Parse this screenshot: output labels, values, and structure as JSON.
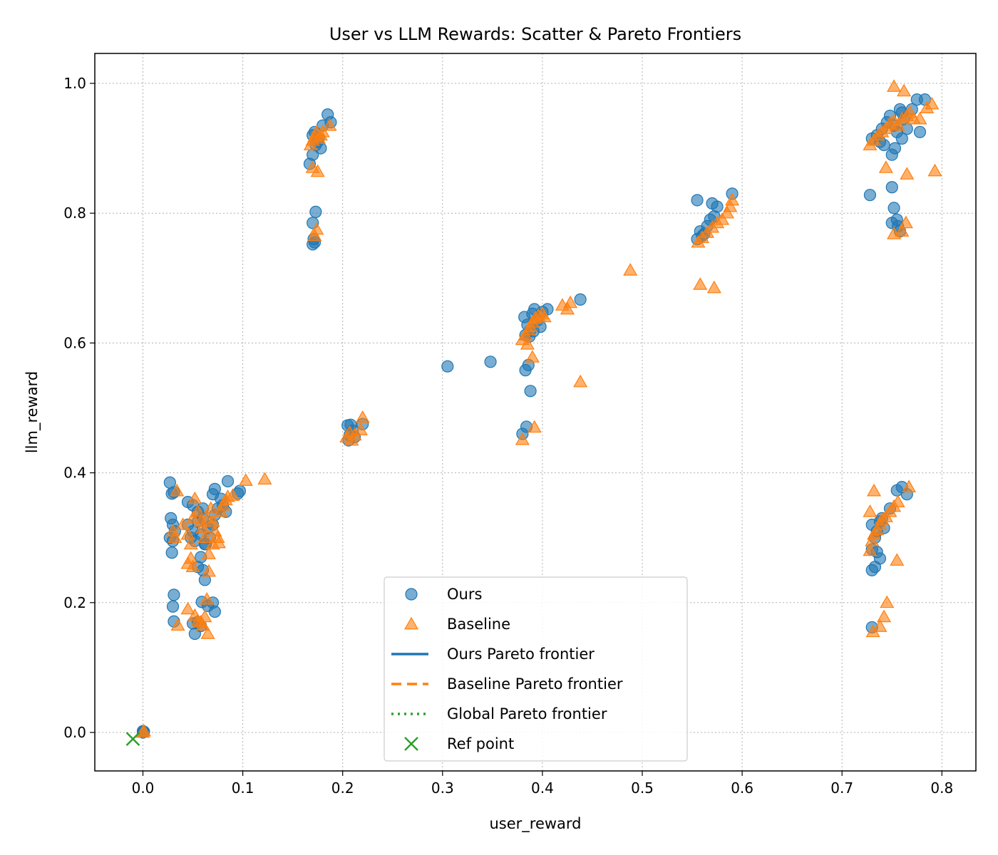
{
  "chart_data": {
    "type": "scatter",
    "title": "User vs LLM Rewards: Scatter & Pareto Frontiers",
    "xlabel": "user_reward",
    "ylabel": "llm_reward",
    "xlim": [
      -0.05,
      0.83
    ],
    "ylim": [
      -0.06,
      1.05
    ],
    "xticks": [
      "0.0",
      "0.1",
      "0.2",
      "0.3",
      "0.4",
      "0.5",
      "0.6",
      "0.7",
      "0.8"
    ],
    "yticks": [
      "0.0",
      "0.2",
      "0.4",
      "0.6",
      "0.8",
      "1.0"
    ],
    "grid": true,
    "legend_position": "bottom-center",
    "colors": {
      "ours": "#1f77b4",
      "baseline": "#ff7f0e",
      "global": "#2ca02c"
    },
    "legend": [
      {
        "label": "Ours",
        "marker": "circle",
        "color": "#1f77b4"
      },
      {
        "label": "Baseline",
        "marker": "triangle",
        "color": "#ff7f0e"
      },
      {
        "label": "Ours Pareto frontier",
        "marker": "solid-line",
        "color": "#1f77b4"
      },
      {
        "label": "Baseline Pareto frontier",
        "marker": "dashed-line",
        "color": "#ff7f0e"
      },
      {
        "label": "Global Pareto frontier",
        "marker": "dotted-line",
        "color": "#2ca02c"
      },
      {
        "label": "Ref point",
        "marker": "x",
        "color": "#2ca02c"
      }
    ],
    "series": [
      {
        "name": "Ours",
        "marker": "circle",
        "points": [
          [
            0.0,
            0.0
          ],
          [
            0.001,
            0.001
          ],
          [
            0.0,
            0.002
          ],
          [
            0.027,
            0.385
          ],
          [
            0.029,
            0.368
          ],
          [
            0.031,
            0.37
          ],
          [
            0.028,
            0.33
          ],
          [
            0.03,
            0.32
          ],
          [
            0.032,
            0.31
          ],
          [
            0.027,
            0.3
          ],
          [
            0.03,
            0.295
          ],
          [
            0.029,
            0.277
          ],
          [
            0.031,
            0.212
          ],
          [
            0.03,
            0.194
          ],
          [
            0.031,
            0.171
          ],
          [
            0.045,
            0.355
          ],
          [
            0.05,
            0.35
          ],
          [
            0.055,
            0.34
          ],
          [
            0.06,
            0.345
          ],
          [
            0.045,
            0.32
          ],
          [
            0.05,
            0.31
          ],
          [
            0.055,
            0.325
          ],
          [
            0.06,
            0.33
          ],
          [
            0.065,
            0.315
          ],
          [
            0.048,
            0.3
          ],
          [
            0.052,
            0.295
          ],
          [
            0.058,
            0.305
          ],
          [
            0.062,
            0.29
          ],
          [
            0.067,
            0.3
          ],
          [
            0.07,
            0.32
          ],
          [
            0.072,
            0.335
          ],
          [
            0.075,
            0.345
          ],
          [
            0.08,
            0.35
          ],
          [
            0.083,
            0.34
          ],
          [
            0.07,
            0.367
          ],
          [
            0.072,
            0.375
          ],
          [
            0.078,
            0.36
          ],
          [
            0.085,
            0.387
          ],
          [
            0.095,
            0.368
          ],
          [
            0.097,
            0.372
          ],
          [
            0.055,
            0.255
          ],
          [
            0.06,
            0.25
          ],
          [
            0.058,
            0.27
          ],
          [
            0.062,
            0.235
          ],
          [
            0.063,
            0.29
          ],
          [
            0.059,
            0.201
          ],
          [
            0.065,
            0.195
          ],
          [
            0.07,
            0.2
          ],
          [
            0.072,
            0.186
          ],
          [
            0.055,
            0.17
          ],
          [
            0.058,
            0.164
          ],
          [
            0.052,
            0.152
          ],
          [
            0.05,
            0.168
          ],
          [
            0.167,
            0.876
          ],
          [
            0.17,
            0.89
          ],
          [
            0.17,
            0.92
          ],
          [
            0.172,
            0.925
          ],
          [
            0.175,
            0.91
          ],
          [
            0.178,
            0.9
          ],
          [
            0.18,
            0.935
          ],
          [
            0.185,
            0.952
          ],
          [
            0.188,
            0.94
          ],
          [
            0.173,
            0.905
          ],
          [
            0.176,
            0.915
          ],
          [
            0.17,
            0.785
          ],
          [
            0.173,
            0.802
          ],
          [
            0.171,
            0.76
          ],
          [
            0.17,
            0.752
          ],
          [
            0.172,
            0.755
          ],
          [
            0.205,
            0.473
          ],
          [
            0.208,
            0.474
          ],
          [
            0.21,
            0.465
          ],
          [
            0.207,
            0.458
          ],
          [
            0.212,
            0.455
          ],
          [
            0.22,
            0.475
          ],
          [
            0.206,
            0.45
          ],
          [
            0.382,
            0.64
          ],
          [
            0.385,
            0.628
          ],
          [
            0.388,
            0.62
          ],
          [
            0.39,
            0.645
          ],
          [
            0.392,
            0.652
          ],
          [
            0.395,
            0.635
          ],
          [
            0.398,
            0.625
          ],
          [
            0.383,
            0.612
          ],
          [
            0.387,
            0.61
          ],
          [
            0.391,
            0.618
          ],
          [
            0.4,
            0.648
          ],
          [
            0.405,
            0.652
          ],
          [
            0.438,
            0.667
          ],
          [
            0.305,
            0.564
          ],
          [
            0.348,
            0.571
          ],
          [
            0.383,
            0.558
          ],
          [
            0.386,
            0.566
          ],
          [
            0.388,
            0.526
          ],
          [
            0.384,
            0.471
          ],
          [
            0.38,
            0.46
          ],
          [
            0.555,
            0.82
          ],
          [
            0.57,
            0.815
          ],
          [
            0.575,
            0.81
          ],
          [
            0.59,
            0.83
          ],
          [
            0.555,
            0.76
          ],
          [
            0.56,
            0.765
          ],
          [
            0.565,
            0.78
          ],
          [
            0.568,
            0.79
          ],
          [
            0.572,
            0.795
          ],
          [
            0.558,
            0.772
          ],
          [
            0.562,
            0.768
          ],
          [
            0.73,
            0.915
          ],
          [
            0.735,
            0.92
          ],
          [
            0.74,
            0.93
          ],
          [
            0.745,
            0.94
          ],
          [
            0.748,
            0.95
          ],
          [
            0.752,
            0.935
          ],
          [
            0.755,
            0.925
          ],
          [
            0.758,
            0.96
          ],
          [
            0.76,
            0.955
          ],
          [
            0.762,
            0.945
          ],
          [
            0.765,
            0.93
          ],
          [
            0.77,
            0.96
          ],
          [
            0.775,
            0.975
          ],
          [
            0.778,
            0.925
          ],
          [
            0.783,
            0.975
          ],
          [
            0.738,
            0.91
          ],
          [
            0.742,
            0.905
          ],
          [
            0.75,
            0.89
          ],
          [
            0.753,
            0.9
          ],
          [
            0.76,
            0.915
          ],
          [
            0.728,
            0.828
          ],
          [
            0.75,
            0.84
          ],
          [
            0.752,
            0.808
          ],
          [
            0.755,
            0.79
          ],
          [
            0.75,
            0.785
          ],
          [
            0.756,
            0.78
          ],
          [
            0.758,
            0.772
          ],
          [
            0.73,
            0.32
          ],
          [
            0.733,
            0.3
          ],
          [
            0.735,
            0.31
          ],
          [
            0.738,
            0.325
          ],
          [
            0.74,
            0.33
          ],
          [
            0.742,
            0.315
          ],
          [
            0.73,
            0.282
          ],
          [
            0.735,
            0.278
          ],
          [
            0.738,
            0.268
          ],
          [
            0.733,
            0.255
          ],
          [
            0.73,
            0.25
          ],
          [
            0.73,
            0.162
          ],
          [
            0.755,
            0.373
          ],
          [
            0.76,
            0.378
          ],
          [
            0.765,
            0.367
          ],
          [
            0.748,
            0.345
          ]
        ]
      },
      {
        "name": "Baseline",
        "marker": "triangle",
        "points": [
          [
            0.0,
            0.0
          ],
          [
            0.001,
            0.002
          ],
          [
            0.03,
            0.31
          ],
          [
            0.032,
            0.3
          ],
          [
            0.034,
            0.372
          ],
          [
            0.04,
            0.32
          ],
          [
            0.045,
            0.305
          ],
          [
            0.048,
            0.29
          ],
          [
            0.05,
            0.33
          ],
          [
            0.052,
            0.36
          ],
          [
            0.055,
            0.34
          ],
          [
            0.058,
            0.325
          ],
          [
            0.06,
            0.315
          ],
          [
            0.062,
            0.3
          ],
          [
            0.065,
            0.33
          ],
          [
            0.068,
            0.345
          ],
          [
            0.07,
            0.325
          ],
          [
            0.072,
            0.31
          ],
          [
            0.075,
            0.3
          ],
          [
            0.078,
            0.34
          ],
          [
            0.08,
            0.35
          ],
          [
            0.083,
            0.358
          ],
          [
            0.085,
            0.363
          ],
          [
            0.09,
            0.365
          ],
          [
            0.103,
            0.388
          ],
          [
            0.122,
            0.39
          ],
          [
            0.035,
            0.165
          ],
          [
            0.045,
            0.26
          ],
          [
            0.048,
            0.268
          ],
          [
            0.05,
            0.255
          ],
          [
            0.045,
            0.19
          ],
          [
            0.052,
            0.18
          ],
          [
            0.055,
            0.172
          ],
          [
            0.058,
            0.17
          ],
          [
            0.06,
            0.165
          ],
          [
            0.062,
            0.178
          ],
          [
            0.065,
            0.152
          ],
          [
            0.064,
            0.205
          ],
          [
            0.066,
            0.248
          ],
          [
            0.066,
            0.275
          ],
          [
            0.07,
            0.29
          ],
          [
            0.076,
            0.292
          ],
          [
            0.168,
            0.905
          ],
          [
            0.17,
            0.912
          ],
          [
            0.172,
            0.918
          ],
          [
            0.174,
            0.925
          ],
          [
            0.176,
            0.915
          ],
          [
            0.178,
            0.92
          ],
          [
            0.18,
            0.925
          ],
          [
            0.187,
            0.935
          ],
          [
            0.17,
            0.87
          ],
          [
            0.175,
            0.864
          ],
          [
            0.172,
            0.765
          ],
          [
            0.174,
            0.775
          ],
          [
            0.204,
            0.455
          ],
          [
            0.207,
            0.462
          ],
          [
            0.209,
            0.45
          ],
          [
            0.212,
            0.458
          ],
          [
            0.218,
            0.466
          ],
          [
            0.22,
            0.485
          ],
          [
            0.38,
            0.605
          ],
          [
            0.383,
            0.612
          ],
          [
            0.386,
            0.62
          ],
          [
            0.388,
            0.625
          ],
          [
            0.39,
            0.632
          ],
          [
            0.393,
            0.638
          ],
          [
            0.396,
            0.642
          ],
          [
            0.4,
            0.645
          ],
          [
            0.402,
            0.64
          ],
          [
            0.42,
            0.658
          ],
          [
            0.428,
            0.662
          ],
          [
            0.425,
            0.652
          ],
          [
            0.488,
            0.712
          ],
          [
            0.385,
            0.598
          ],
          [
            0.39,
            0.578
          ],
          [
            0.438,
            0.54
          ],
          [
            0.392,
            0.47
          ],
          [
            0.38,
            0.451
          ],
          [
            0.556,
            0.755
          ],
          [
            0.56,
            0.762
          ],
          [
            0.565,
            0.77
          ],
          [
            0.57,
            0.778
          ],
          [
            0.575,
            0.785
          ],
          [
            0.58,
            0.79
          ],
          [
            0.585,
            0.8
          ],
          [
            0.588,
            0.81
          ],
          [
            0.59,
            0.82
          ],
          [
            0.558,
            0.69
          ],
          [
            0.572,
            0.685
          ],
          [
            0.728,
            0.905
          ],
          [
            0.732,
            0.912
          ],
          [
            0.736,
            0.92
          ],
          [
            0.74,
            0.925
          ],
          [
            0.744,
            0.93
          ],
          [
            0.748,
            0.938
          ],
          [
            0.752,
            0.942
          ],
          [
            0.756,
            0.935
          ],
          [
            0.76,
            0.945
          ],
          [
            0.765,
            0.95
          ],
          [
            0.768,
            0.955
          ],
          [
            0.772,
            0.945
          ],
          [
            0.778,
            0.945
          ],
          [
            0.785,
            0.962
          ],
          [
            0.79,
            0.968
          ],
          [
            0.752,
            0.995
          ],
          [
            0.762,
            0.988
          ],
          [
            0.744,
            0.87
          ],
          [
            0.765,
            0.86
          ],
          [
            0.793,
            0.865
          ],
          [
            0.752,
            0.768
          ],
          [
            0.76,
            0.772
          ],
          [
            0.764,
            0.785
          ],
          [
            0.728,
            0.28
          ],
          [
            0.73,
            0.295
          ],
          [
            0.732,
            0.305
          ],
          [
            0.735,
            0.312
          ],
          [
            0.738,
            0.32
          ],
          [
            0.74,
            0.328
          ],
          [
            0.744,
            0.332
          ],
          [
            0.748,
            0.34
          ],
          [
            0.752,
            0.348
          ],
          [
            0.756,
            0.355
          ],
          [
            0.728,
            0.34
          ],
          [
            0.732,
            0.372
          ],
          [
            0.767,
            0.378
          ],
          [
            0.755,
            0.265
          ],
          [
            0.745,
            0.2
          ],
          [
            0.742,
            0.178
          ],
          [
            0.738,
            0.163
          ],
          [
            0.731,
            0.155
          ]
        ]
      },
      {
        "name": "Ref point",
        "marker": "x",
        "points": [
          [
            -0.01,
            -0.01
          ]
        ]
      }
    ]
  }
}
